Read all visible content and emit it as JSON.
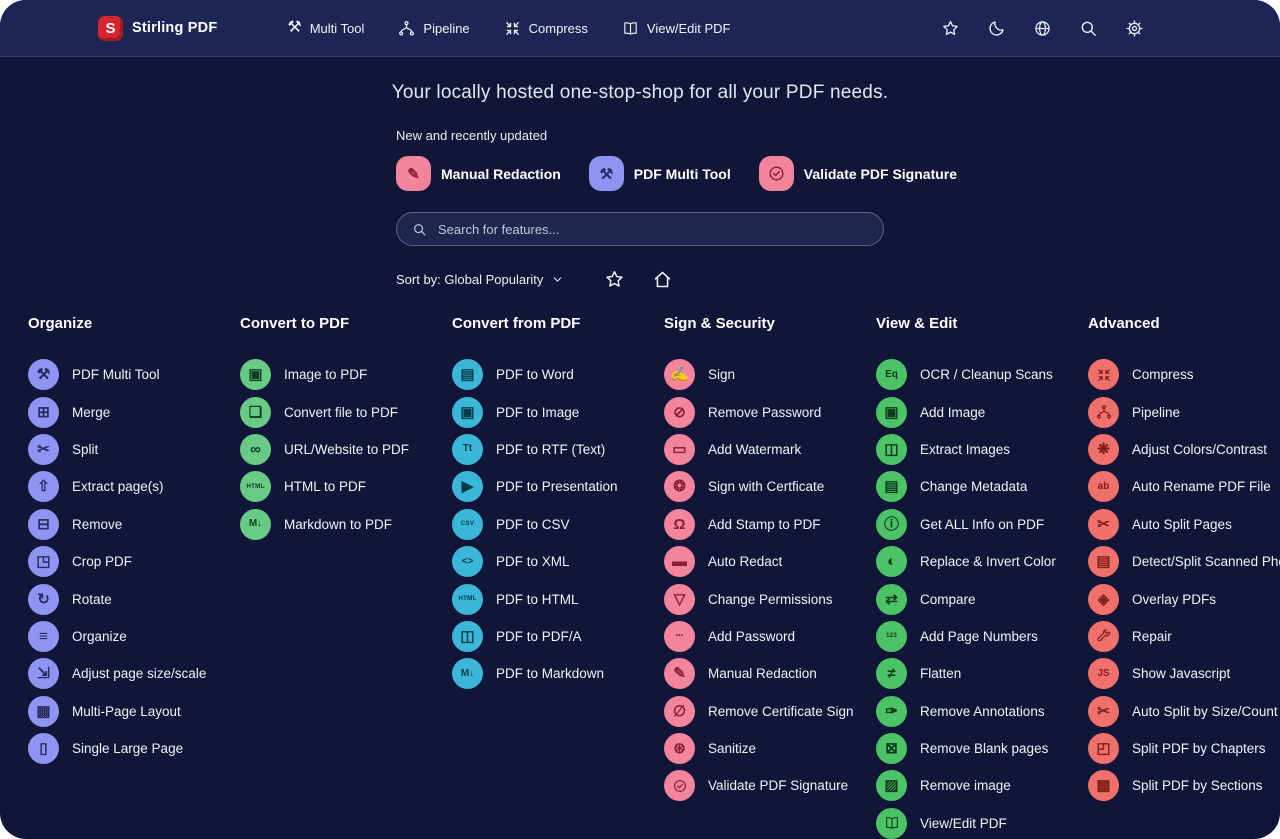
{
  "navbar": {
    "logo_letter": "S",
    "brand": "Stirling PDF",
    "items": [
      {
        "label": "Multi Tool",
        "icon": "multi-tool",
        "glyph": "⚒"
      },
      {
        "label": "Pipeline",
        "icon": "pipeline",
        "glyph": "svg:pipeline"
      },
      {
        "label": "Compress",
        "icon": "compress",
        "glyph": "svg:compress"
      },
      {
        "label": "View/Edit PDF",
        "icon": "view-edit-pdf",
        "glyph": "svg:book"
      }
    ],
    "action_icons": [
      {
        "name": "favorites",
        "icon": "star",
        "glyph": "svg:star"
      },
      {
        "name": "dark-mode",
        "icon": "moon",
        "glyph": "svg:moon"
      },
      {
        "name": "language",
        "icon": "globe",
        "glyph": "svg:globe"
      },
      {
        "name": "search",
        "icon": "search",
        "glyph": "svg:search"
      },
      {
        "name": "settings",
        "icon": "gear",
        "glyph": "svg:gear"
      }
    ]
  },
  "hero": {
    "headline": "Your locally hosted one-stop-shop for all your PDF needs.",
    "featured_label": "New and recently updated",
    "featured": [
      {
        "label": "Manual Redaction",
        "icon": "manual-redaction",
        "glyph": "✎",
        "color": "#f2859b",
        "glyph_color": "#8a1f38"
      },
      {
        "label": "PDF Multi Tool",
        "icon": "pdf-multi-tool",
        "glyph": "⚒",
        "color": "#8f94f3",
        "glyph_color": "#252c5e"
      },
      {
        "label": "Validate PDF Signature",
        "icon": "validate-pdf-signature",
        "glyph": "svg:badge-check",
        "color": "#f2859b",
        "glyph_color": "#8a1f38"
      }
    ],
    "search_placeholder": "Search for features...",
    "sort_label": "Sort by: Global Popularity",
    "view_toggles": [
      {
        "name": "favorites-view",
        "icon": "star",
        "glyph": "svg:star"
      },
      {
        "name": "home-view",
        "icon": "home",
        "glyph": "svg:home"
      }
    ]
  },
  "colors": {
    "page_bg": "#111638",
    "navbar_bg": "#1c2553",
    "logo_red": "#d8242f",
    "periwinkle": "#8f94f3",
    "green_convert": "#68cb85",
    "cyan": "#39b6d8",
    "pink": "#f2859b",
    "green_view": "#4cc366",
    "coral": "#f0716c"
  },
  "columns": [
    {
      "title": "Organize",
      "color": "#8f94f3",
      "glyph_color": "#252c5e",
      "items": [
        {
          "label": "PDF Multi Tool",
          "icon": "pdf-multi-tool",
          "glyph": "⚒"
        },
        {
          "label": "Merge",
          "icon": "merge",
          "glyph": "⊞"
        },
        {
          "label": "Split",
          "icon": "split",
          "glyph": "✂"
        },
        {
          "label": "Extract page(s)",
          "icon": "extract-pages",
          "glyph": "⇧"
        },
        {
          "label": "Remove",
          "icon": "remove-pages",
          "glyph": "⊟"
        },
        {
          "label": "Crop PDF",
          "icon": "crop-pdf",
          "glyph": "◳"
        },
        {
          "label": "Rotate",
          "icon": "rotate",
          "glyph": "↻"
        },
        {
          "label": "Organize",
          "icon": "organize-pages",
          "glyph": "≡"
        },
        {
          "label": "Adjust page size/scale",
          "icon": "adjust-page-size",
          "glyph": "⇲"
        },
        {
          "label": "Multi-Page Layout",
          "icon": "multi-page-layout",
          "glyph": "▦"
        },
        {
          "label": "Single Large Page",
          "icon": "single-large-page",
          "glyph": "▯"
        }
      ]
    },
    {
      "title": "Convert to PDF",
      "color": "#68cb85",
      "glyph_color": "#0e3d20",
      "items": [
        {
          "label": "Image to PDF",
          "icon": "image-to-pdf",
          "glyph": "▣"
        },
        {
          "label": "Convert file to PDF",
          "icon": "file-to-pdf",
          "glyph": "❏"
        },
        {
          "label": "URL/Website to PDF",
          "icon": "url-to-pdf",
          "glyph": "∞"
        },
        {
          "label": "HTML to PDF",
          "icon": "html-to-pdf",
          "glyph": "HTML"
        },
        {
          "label": "Markdown to PDF",
          "icon": "markdown-to-pdf",
          "glyph": "M↓"
        }
      ]
    },
    {
      "title": "Convert from PDF",
      "color": "#39b6d8",
      "glyph_color": "#093a47",
      "items": [
        {
          "label": "PDF to Word",
          "icon": "pdf-to-word",
          "glyph": "▤"
        },
        {
          "label": "PDF to Image",
          "icon": "pdf-to-image",
          "glyph": "▣"
        },
        {
          "label": "PDF to RTF (Text)",
          "icon": "pdf-to-rtf",
          "glyph": "Tt"
        },
        {
          "label": "PDF to Presentation",
          "icon": "pdf-to-presentation",
          "glyph": "▶"
        },
        {
          "label": "PDF to CSV",
          "icon": "pdf-to-csv",
          "glyph": "CSV"
        },
        {
          "label": "PDF to XML",
          "icon": "pdf-to-xml",
          "glyph": "<>"
        },
        {
          "label": "PDF to HTML",
          "icon": "pdf-to-html",
          "glyph": "HTML"
        },
        {
          "label": "PDF to PDF/A",
          "icon": "pdf-to-pdfa",
          "glyph": "◫"
        },
        {
          "label": "PDF to Markdown",
          "icon": "pdf-to-markdown",
          "glyph": "M↓"
        }
      ]
    },
    {
      "title": "Sign & Security",
      "color": "#f2859b",
      "glyph_color": "#8a1f38",
      "items": [
        {
          "label": "Sign",
          "icon": "sign",
          "glyph": "✍"
        },
        {
          "label": "Remove Password",
          "icon": "remove-password",
          "glyph": "⊘"
        },
        {
          "label": "Add Watermark",
          "icon": "add-watermark",
          "glyph": "▭"
        },
        {
          "label": "Sign with Certficate",
          "icon": "sign-with-certificate",
          "glyph": "❂"
        },
        {
          "label": "Add Stamp to PDF",
          "icon": "add-stamp",
          "glyph": "Ω"
        },
        {
          "label": "Auto Redact",
          "icon": "auto-redact",
          "glyph": "▬"
        },
        {
          "label": "Change Permissions",
          "icon": "change-permissions",
          "glyph": "▽"
        },
        {
          "label": "Add Password",
          "icon": "add-password",
          "glyph": "•••"
        },
        {
          "label": "Manual Redaction",
          "icon": "manual-redaction",
          "glyph": "✎"
        },
        {
          "label": "Remove Certificate Sign",
          "icon": "remove-certificate-sign",
          "glyph": "∅"
        },
        {
          "label": "Sanitize",
          "icon": "sanitize",
          "glyph": "⊛"
        },
        {
          "label": "Validate PDF Signature",
          "icon": "validate-pdf-signature",
          "glyph": "svg:badge-check"
        }
      ]
    },
    {
      "title": "View & Edit",
      "color": "#4cc366",
      "glyph_color": "#0c3b1d",
      "items": [
        {
          "label": "OCR / Cleanup Scans",
          "icon": "ocr-cleanup-scans",
          "glyph": "Eq"
        },
        {
          "label": "Add Image",
          "icon": "add-image",
          "glyph": "▣"
        },
        {
          "label": "Extract Images",
          "icon": "extract-images",
          "glyph": "◫"
        },
        {
          "label": "Change Metadata",
          "icon": "change-metadata",
          "glyph": "▤"
        },
        {
          "label": "Get ALL Info on PDF",
          "icon": "get-all-info",
          "glyph": "ⓘ"
        },
        {
          "label": "Replace & Invert Color",
          "icon": "replace-invert-color",
          "glyph": "◐"
        },
        {
          "label": "Compare",
          "icon": "compare",
          "glyph": "⇄"
        },
        {
          "label": "Add Page Numbers",
          "icon": "add-page-numbers",
          "glyph": "123"
        },
        {
          "label": "Flatten",
          "icon": "flatten",
          "glyph": "≠"
        },
        {
          "label": "Remove Annotations",
          "icon": "remove-annotations",
          "glyph": "✑"
        },
        {
          "label": "Remove Blank pages",
          "icon": "remove-blank-pages",
          "glyph": "⊠"
        },
        {
          "label": "Remove image",
          "icon": "remove-image",
          "glyph": "▨"
        },
        {
          "label": "View/Edit PDF",
          "icon": "view-edit-pdf",
          "glyph": "svg:book"
        }
      ]
    },
    {
      "title": "Advanced",
      "color": "#f0716c",
      "glyph_color": "#801f17",
      "items": [
        {
          "label": "Compress",
          "icon": "compress",
          "glyph": "svg:compress"
        },
        {
          "label": "Pipeline",
          "icon": "pipeline",
          "glyph": "svg:pipeline"
        },
        {
          "label": "Adjust Colors/Contrast",
          "icon": "adjust-colors-contrast",
          "glyph": "❋"
        },
        {
          "label": "Auto Rename PDF File",
          "icon": "auto-rename",
          "glyph": "ab"
        },
        {
          "label": "Auto Split Pages",
          "icon": "auto-split-pages",
          "glyph": "✂"
        },
        {
          "label": "Detect/Split Scanned Photos",
          "icon": "detect-split-scanned-photos",
          "glyph": "▤"
        },
        {
          "label": "Overlay PDFs",
          "icon": "overlay-pdfs",
          "glyph": "◈"
        },
        {
          "label": "Repair",
          "icon": "repair",
          "glyph": "svg:wrench"
        },
        {
          "label": "Show Javascript",
          "icon": "show-javascript",
          "glyph": "JS"
        },
        {
          "label": "Auto Split by Size/Count",
          "icon": "auto-split-size-count",
          "glyph": "✂"
        },
        {
          "label": "Split PDF by Chapters",
          "icon": "split-pdf-chapters",
          "glyph": "◰"
        },
        {
          "label": "Split PDF by Sections",
          "icon": "split-pdf-sections",
          "glyph": "▩"
        }
      ]
    }
  ]
}
